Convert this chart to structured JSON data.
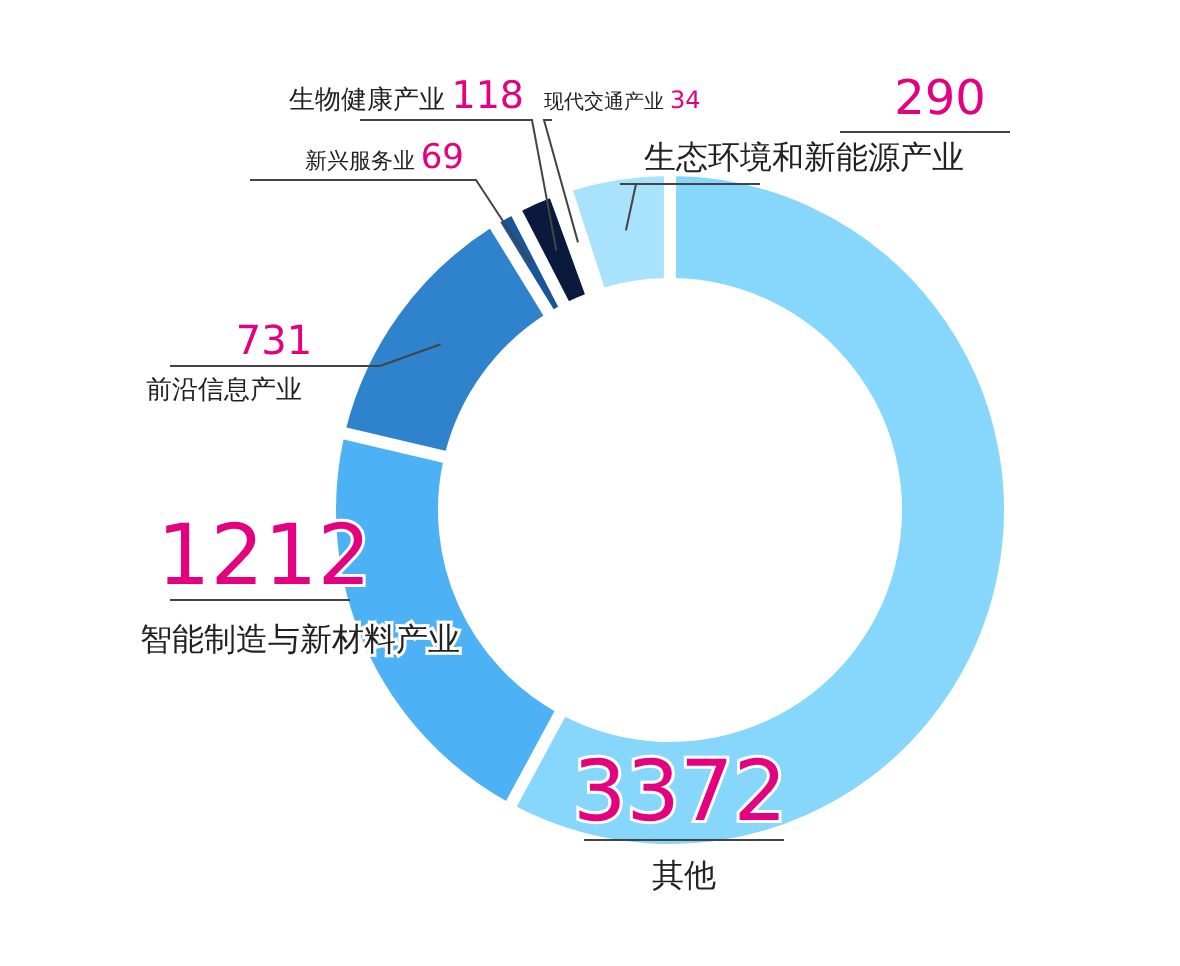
{
  "chart_data": {
    "type": "donut",
    "categories": [
      "其他",
      "智能制造与新材料产业",
      "前沿信息产业",
      "新兴服务业",
      "生物健康产业",
      "现代交通产业",
      "生态环境和新能源产业"
    ],
    "values": [
      3372,
      1212,
      731,
      69,
      118,
      34,
      290
    ],
    "colors": [
      "#87d6fb",
      "#4db1f5",
      "#2f82cc",
      "#1a5599",
      "#0a1a3d",
      "#1e4f8c",
      "#a8e2fc"
    ],
    "data_labels": true
  }
}
